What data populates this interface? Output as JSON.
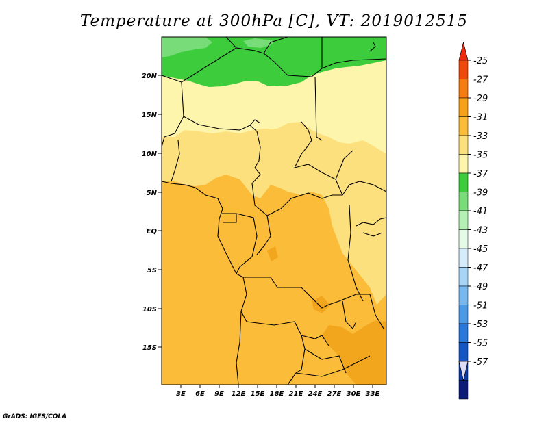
{
  "title": "Temperature at 300hPa [C], VT: 2019012515",
  "credit": "GrADS: IGES/COLA",
  "map": {
    "region": "Central/Southern Africa",
    "lat_labels": [
      "20N",
      "15N",
      "10N",
      "5N",
      "EQ",
      "5S",
      "10S",
      "15S"
    ],
    "lon_labels": [
      "3E",
      "6E",
      "9E",
      "12E",
      "15E",
      "18E",
      "21E",
      "24E",
      "27E",
      "30E",
      "33E"
    ],
    "fill_colors": {
      "c_27_29": "#f2a61e",
      "c_29_31": "#fbbc3a",
      "c_31_33": "#fde07e",
      "c_33_35": "#fdf5ac",
      "c_37_39": "#3ccc3c",
      "c_39_41": "#78dc78",
      "border": "#000000"
    }
  },
  "colorbar": {
    "levels": [
      "-25",
      "-27",
      "-29",
      "-31",
      "-33",
      "-35",
      "-37",
      "-39",
      "-41",
      "-43",
      "-45",
      "-47",
      "-49",
      "-51",
      "-53",
      "-55",
      "-57"
    ],
    "colors": [
      "#ee4a0c",
      "#f47c10",
      "#f7a11b",
      "#fbbc3a",
      "#fde07e",
      "#fdf5ac",
      "#3ccc3c",
      "#78dc78",
      "#b4f0b4",
      "#e6fae8",
      "#d6ecfb",
      "#a8d4f6",
      "#78b8ef",
      "#4c9ae6",
      "#2a78db",
      "#1457c4",
      "#0c3aa6",
      "#0c1a78"
    ],
    "top_color": "#ee2a0c",
    "bottom_color": "#dcdcf6"
  }
}
